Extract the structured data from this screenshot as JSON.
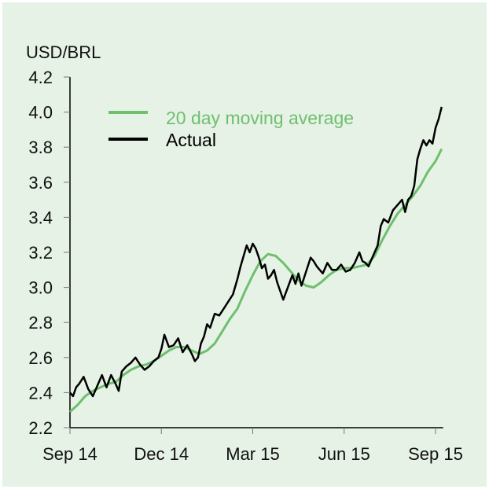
{
  "chart_data": {
    "type": "line",
    "title": "",
    "ylabel": "USD/BRL",
    "xlabel": "",
    "ylim": [
      2.2,
      4.2
    ],
    "yticks": [
      "2.2",
      "2.4",
      "2.6",
      "2.8",
      "3.0",
      "3.2",
      "3.4",
      "3.6",
      "3.8",
      "4.0",
      "4.2"
    ],
    "xlim": [
      0,
      12.25
    ],
    "xticks": [
      {
        "value": 0,
        "label": "Sep 14"
      },
      {
        "value": 3,
        "label": "Dec 14"
      },
      {
        "value": 6,
        "label": "Mar 15"
      },
      {
        "value": 9,
        "label": "Jun 15"
      },
      {
        "value": 12,
        "label": "Sep 15"
      }
    ],
    "x_unit": "months since Sep 2014",
    "legend": {
      "position": "top-left",
      "entries": [
        "20 day moving average",
        "Actual"
      ]
    },
    "series": [
      {
        "name": "20 day moving average",
        "color": "#6fbf6f",
        "x": [
          0,
          0.25,
          0.5,
          0.75,
          1.0,
          1.25,
          1.5,
          1.75,
          2.0,
          2.25,
          2.5,
          2.75,
          3.0,
          3.25,
          3.5,
          3.75,
          4.0,
          4.25,
          4.5,
          4.75,
          5.0,
          5.25,
          5.5,
          5.75,
          6.0,
          6.25,
          6.5,
          6.75,
          7.0,
          7.25,
          7.5,
          7.75,
          8.0,
          8.25,
          8.5,
          8.75,
          9.0,
          9.25,
          9.5,
          9.75,
          10.0,
          10.25,
          10.5,
          10.75,
          11.0,
          11.25,
          11.5,
          11.75,
          12.0,
          12.2
        ],
        "values": [
          2.29,
          2.33,
          2.38,
          2.41,
          2.43,
          2.45,
          2.46,
          2.5,
          2.53,
          2.55,
          2.56,
          2.58,
          2.61,
          2.64,
          2.66,
          2.66,
          2.64,
          2.62,
          2.64,
          2.68,
          2.75,
          2.82,
          2.88,
          2.98,
          3.07,
          3.15,
          3.19,
          3.18,
          3.14,
          3.09,
          3.04,
          3.01,
          3.0,
          3.03,
          3.07,
          3.1,
          3.11,
          3.11,
          3.12,
          3.13,
          3.18,
          3.27,
          3.35,
          3.42,
          3.47,
          3.52,
          3.58,
          3.66,
          3.72,
          3.79
        ]
      },
      {
        "name": "Actual",
        "color": "#000000",
        "x": [
          0,
          0.1,
          0.2,
          0.3,
          0.45,
          0.6,
          0.75,
          0.9,
          1.05,
          1.2,
          1.35,
          1.5,
          1.6,
          1.7,
          1.85,
          2.0,
          2.15,
          2.3,
          2.45,
          2.6,
          2.75,
          2.9,
          3.0,
          3.1,
          3.25,
          3.4,
          3.55,
          3.7,
          3.85,
          4.0,
          4.1,
          4.2,
          4.3,
          4.4,
          4.5,
          4.6,
          4.75,
          4.9,
          5.05,
          5.2,
          5.35,
          5.5,
          5.6,
          5.7,
          5.8,
          5.9,
          6.0,
          6.1,
          6.2,
          6.3,
          6.4,
          6.5,
          6.6,
          6.7,
          6.8,
          6.9,
          7.0,
          7.15,
          7.3,
          7.4,
          7.5,
          7.6,
          7.75,
          7.9,
          8.0,
          8.1,
          8.2,
          8.3,
          8.45,
          8.6,
          8.75,
          8.9,
          9.05,
          9.2,
          9.35,
          9.5,
          9.6,
          9.7,
          9.8,
          9.9,
          10.0,
          10.1,
          10.2,
          10.3,
          10.45,
          10.6,
          10.75,
          10.9,
          11.0,
          11.1,
          11.2,
          11.3,
          11.4,
          11.5,
          11.6,
          11.7,
          11.8,
          11.9,
          12.0,
          12.1,
          12.2
        ],
        "values": [
          2.4,
          2.38,
          2.43,
          2.45,
          2.49,
          2.42,
          2.38,
          2.44,
          2.5,
          2.43,
          2.5,
          2.45,
          2.41,
          2.52,
          2.55,
          2.57,
          2.6,
          2.56,
          2.53,
          2.55,
          2.58,
          2.6,
          2.65,
          2.73,
          2.66,
          2.67,
          2.71,
          2.63,
          2.67,
          2.62,
          2.58,
          2.6,
          2.68,
          2.72,
          2.79,
          2.77,
          2.85,
          2.84,
          2.88,
          2.92,
          2.96,
          3.05,
          3.12,
          3.18,
          3.24,
          3.2,
          3.25,
          3.22,
          3.17,
          3.11,
          3.13,
          3.05,
          3.07,
          3.1,
          3.03,
          2.98,
          2.93,
          3.0,
          3.07,
          3.02,
          3.08,
          3.01,
          3.09,
          3.17,
          3.15,
          3.12,
          3.1,
          3.08,
          3.14,
          3.1,
          3.1,
          3.13,
          3.09,
          3.1,
          3.14,
          3.2,
          3.15,
          3.14,
          3.12,
          3.16,
          3.2,
          3.24,
          3.35,
          3.39,
          3.37,
          3.44,
          3.47,
          3.5,
          3.43,
          3.5,
          3.52,
          3.58,
          3.73,
          3.79,
          3.84,
          3.81,
          3.84,
          3.82,
          3.91,
          3.96,
          4.03
        ]
      }
    ]
  }
}
